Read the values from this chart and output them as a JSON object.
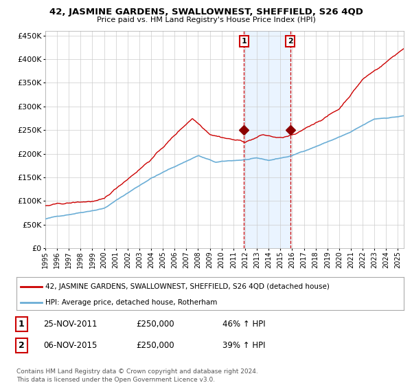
{
  "title": "42, JASMINE GARDENS, SWALLOWNEST, SHEFFIELD, S26 4QD",
  "subtitle": "Price paid vs. HM Land Registry's House Price Index (HPI)",
  "legend_line1": "42, JASMINE GARDENS, SWALLOWNEST, SHEFFIELD, S26 4QD (detached house)",
  "legend_line2": "HPI: Average price, detached house, Rotherham",
  "annotation1_date": "25-NOV-2011",
  "annotation1_price": "£250,000",
  "annotation1_hpi": "46% ↑ HPI",
  "annotation2_date": "06-NOV-2015",
  "annotation2_price": "£250,000",
  "annotation2_hpi": "39% ↑ HPI",
  "footer": "Contains HM Land Registry data © Crown copyright and database right 2024.\nThis data is licensed under the Open Government Licence v3.0.",
  "hpi_color": "#6baed6",
  "price_color": "#cc0000",
  "marker_color": "#8b0000",
  "dashed_color": "#cc0000",
  "shade_color": "#ddeeff",
  "background_color": "#ffffff",
  "grid_color": "#cccccc",
  "ylim": [
    0,
    460000
  ],
  "yticks": [
    0,
    50000,
    100000,
    150000,
    200000,
    250000,
    300000,
    350000,
    400000,
    450000
  ],
  "sale1_year": 2011.9,
  "sale2_year": 2015.85,
  "sale1_price": 250000,
  "sale2_price": 250000,
  "xlim_start": 1995,
  "xlim_end": 2025.5
}
